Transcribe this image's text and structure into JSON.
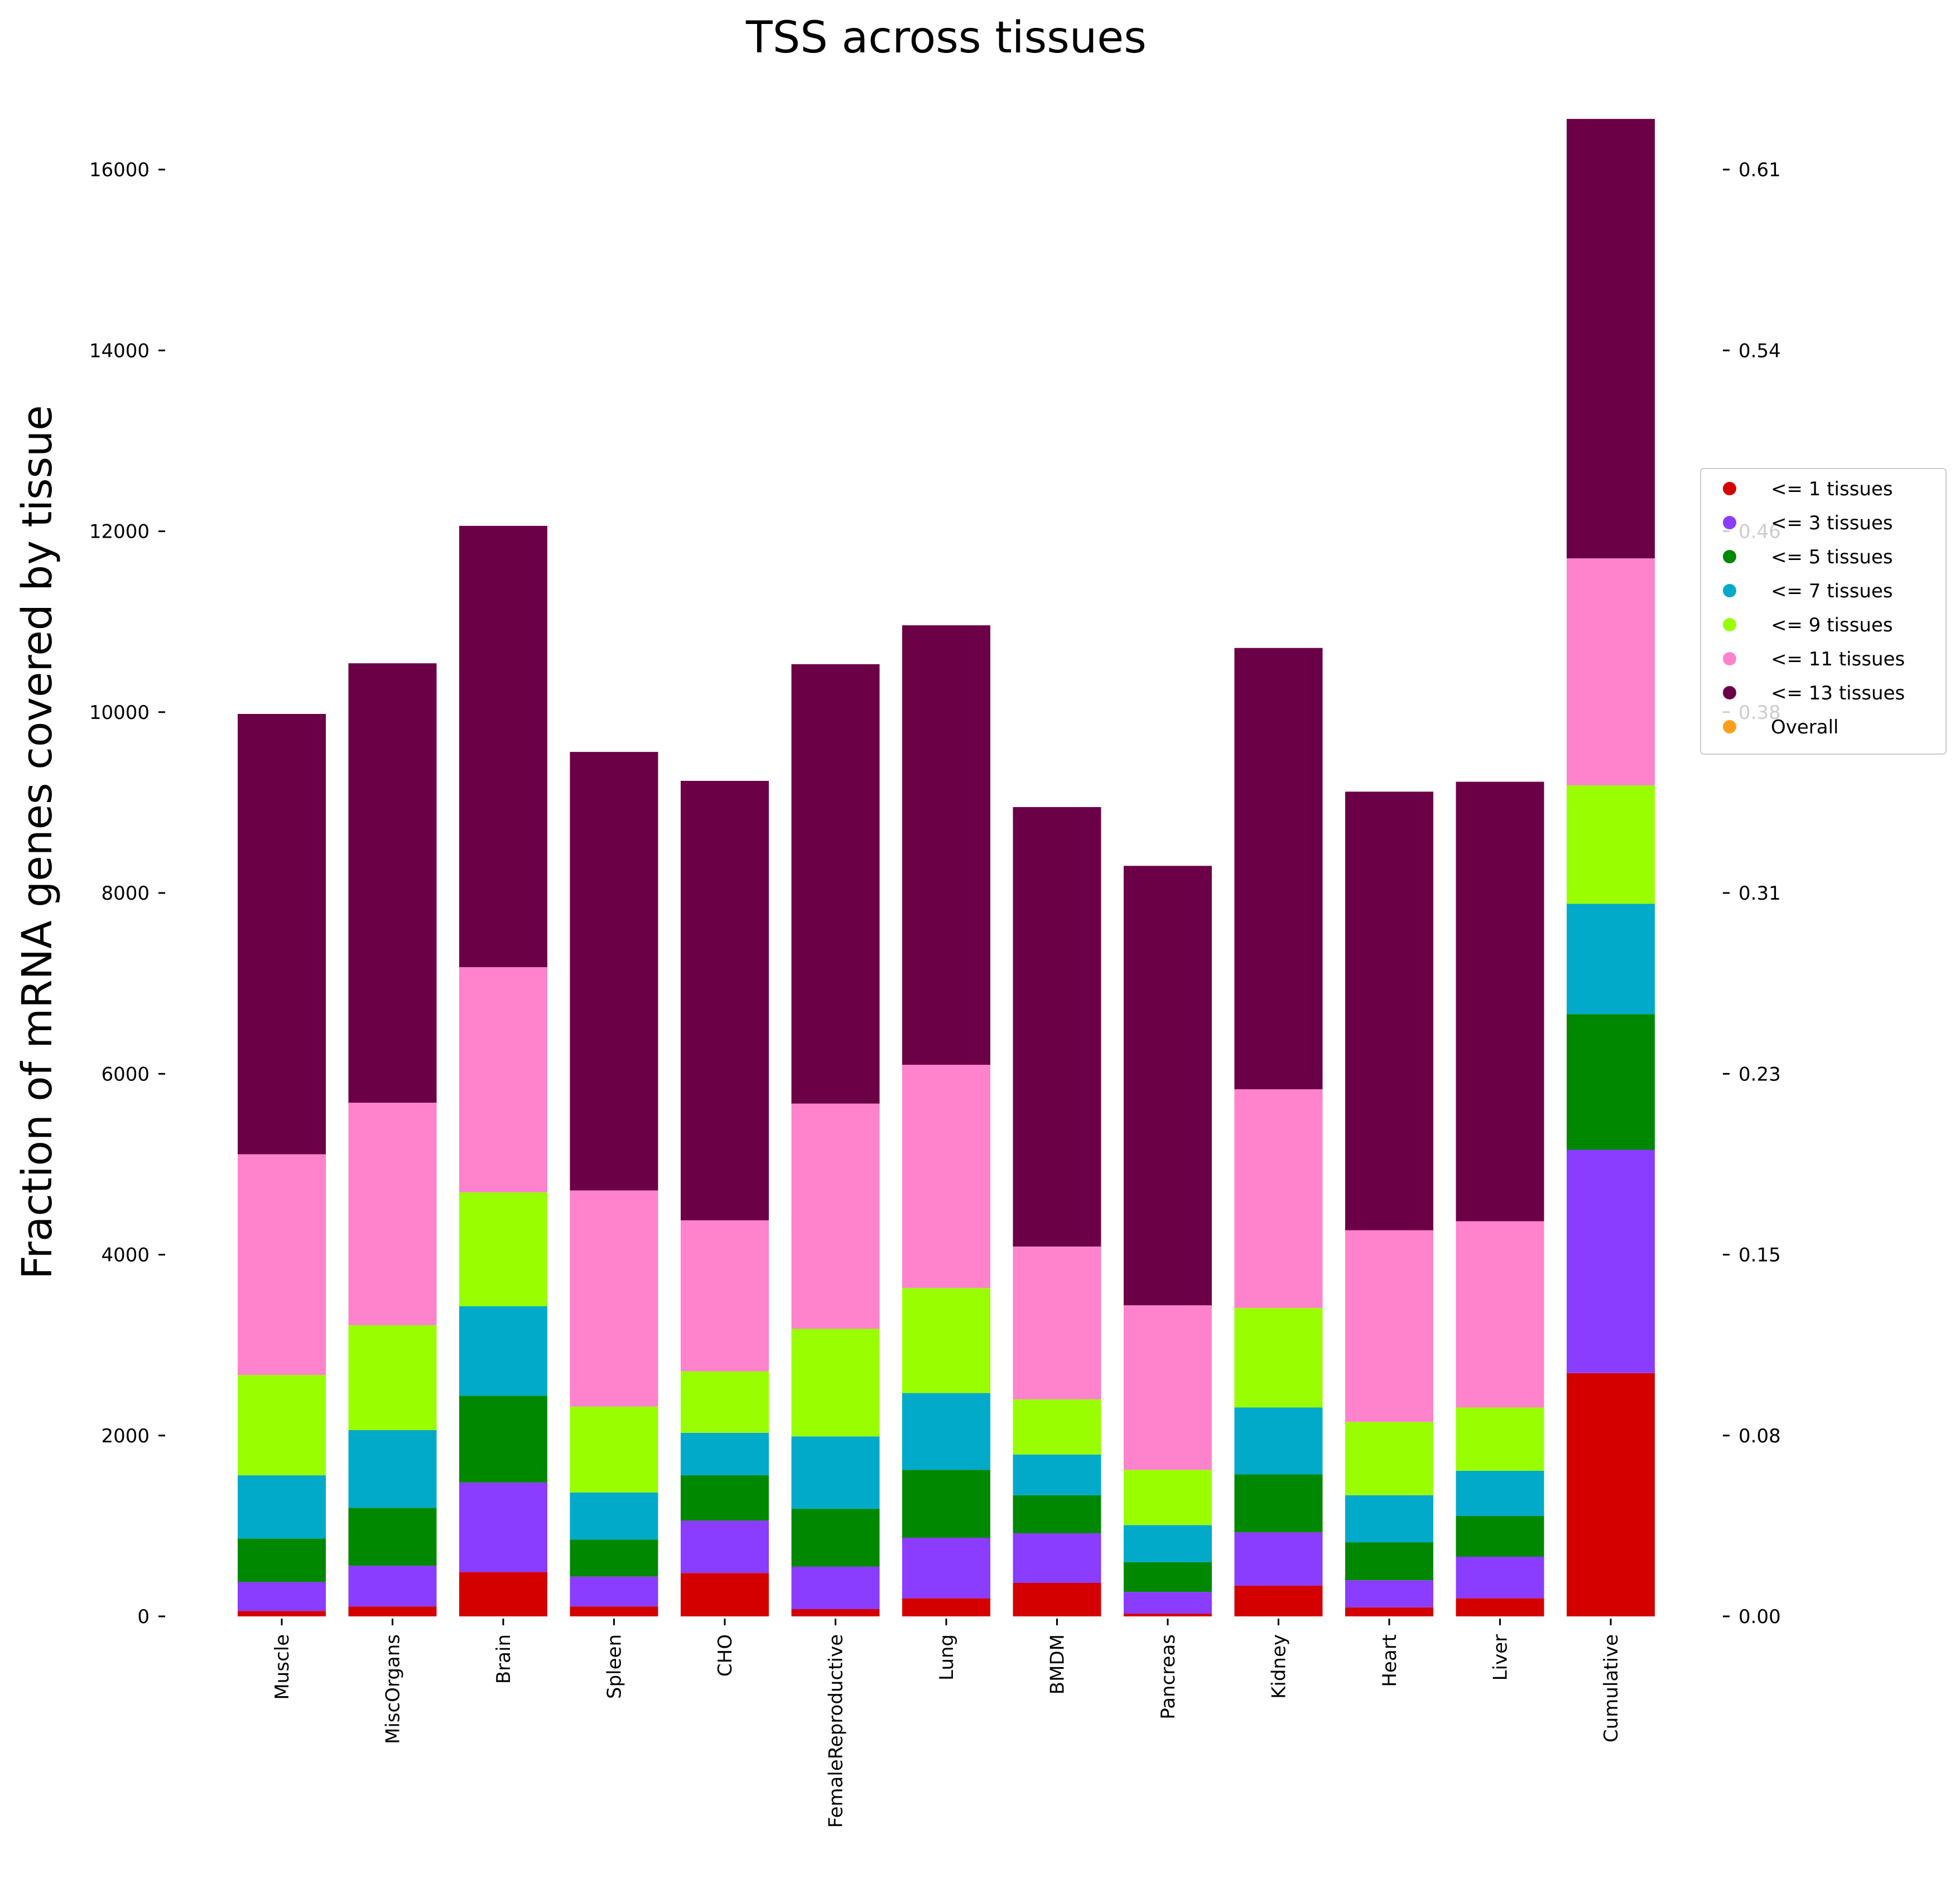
{
  "chart_data": {
    "type": "bar",
    "stacked": true,
    "title": "TSS across tissues",
    "ylabel": "Fraction of mRNA genes covered by tissue",
    "xlabel": "",
    "categories": [
      "Muscle",
      "MiscOrgans",
      "Brain",
      "Spleen",
      "CHO",
      "FemaleReproductive",
      "Lung",
      "BMDM",
      "Pancreas",
      "Kidney",
      "Heart",
      "Liver",
      "Cumulative"
    ],
    "ylim": [
      0,
      16580
    ],
    "yticks": [
      0,
      2000,
      4000,
      6000,
      8000,
      10000,
      12000,
      14000,
      16000
    ],
    "ytick_labels": [
      "0",
      "2000",
      "4000",
      "6000",
      "8000",
      "10000",
      "12000",
      "14000",
      "16000"
    ],
    "right_yticks": [
      0,
      2000,
      4000,
      6000,
      8000,
      10000,
      12000,
      14000,
      16000
    ],
    "right_ytick_labels": [
      "0.00",
      "0.08",
      "0.15",
      "0.23",
      "0.31",
      "0.38",
      "0.46",
      "0.54",
      "0.61"
    ],
    "series": [
      {
        "name": "<= 1 tissues",
        "color": "#d40000",
        "values": [
          60,
          110,
          490,
          110,
          480,
          80,
          200,
          370,
          30,
          340,
          100,
          200,
          2690
        ]
      },
      {
        "name": "<= 3 tissues",
        "color": "#8a3cff",
        "values": [
          320,
          450,
          990,
          330,
          580,
          470,
          670,
          550,
          240,
          590,
          300,
          460,
          2470
        ]
      },
      {
        "name": "<= 5 tissues",
        "color": "#008800",
        "values": [
          480,
          640,
          960,
          410,
          500,
          640,
          750,
          420,
          330,
          640,
          420,
          450,
          1500
        ]
      },
      {
        "name": "<= 7 tissues",
        "color": "#00aac8",
        "values": [
          700,
          860,
          990,
          520,
          470,
          800,
          850,
          450,
          410,
          740,
          520,
          500,
          1220
        ]
      },
      {
        "name": "<= 9 tissues",
        "color": "#99ff00",
        "values": [
          1110,
          1160,
          1260,
          950,
          680,
          1190,
          1160,
          610,
          610,
          1100,
          810,
          700,
          1310
        ]
      },
      {
        "name": "<= 11 tissues",
        "color": "#ff82cd",
        "values": [
          2440,
          2460,
          2490,
          2390,
          1670,
          2490,
          2470,
          1690,
          1820,
          2420,
          2120,
          2060,
          2510
        ]
      },
      {
        "name": "<= 13 tissues",
        "color": "#6b0047",
        "values": [
          4870,
          4860,
          4880,
          4850,
          4860,
          4860,
          4860,
          4860,
          4860,
          4880,
          4850,
          4860,
          4860
        ]
      }
    ],
    "legend": {
      "placement": "center-right",
      "entries": [
        {
          "label": "<= 1 tissues",
          "color": "#d40000"
        },
        {
          "label": "<= 3 tissues",
          "color": "#8a3cff"
        },
        {
          "label": "<= 5 tissues",
          "color": "#008800"
        },
        {
          "label": "<= 7 tissues",
          "color": "#00aac8"
        },
        {
          "label": "<= 9 tissues",
          "color": "#99ff00"
        },
        {
          "label": "<= 11 tissues",
          "color": "#ff82cd"
        },
        {
          "label": "<= 13 tissues",
          "color": "#6b0047"
        },
        {
          "label": "Overall",
          "color": "#ff9f1c"
        }
      ]
    },
    "grid": false
  }
}
